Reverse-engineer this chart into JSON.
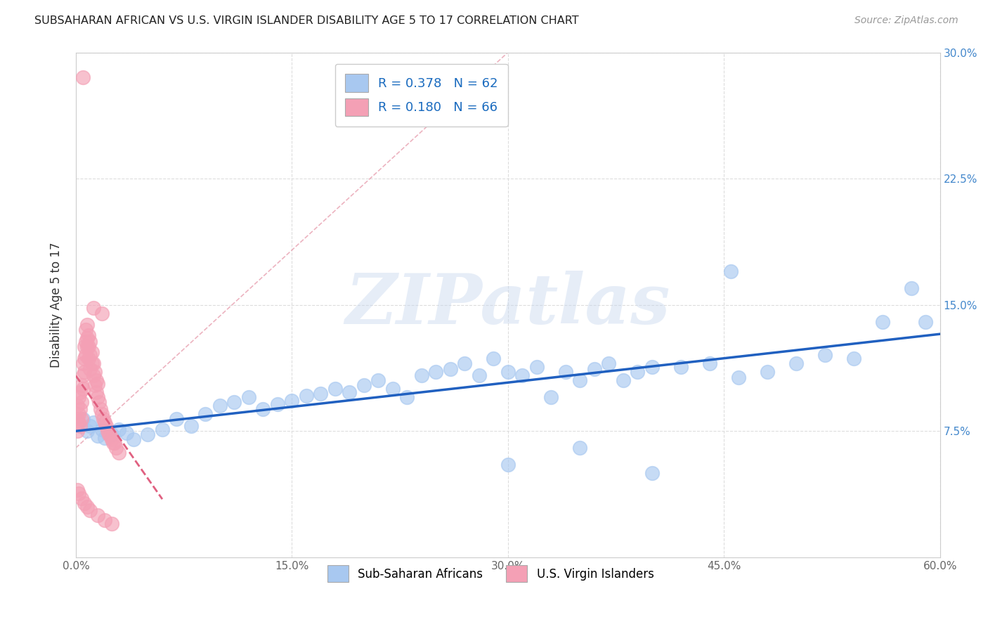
{
  "title": "SUBSAHARAN AFRICAN VS U.S. VIRGIN ISLANDER DISABILITY AGE 5 TO 17 CORRELATION CHART",
  "source": "Source: ZipAtlas.com",
  "ylabel": "Disability Age 5 to 17",
  "xlim": [
    0.0,
    0.6
  ],
  "ylim": [
    0.0,
    0.3
  ],
  "xticks": [
    0.0,
    0.15,
    0.3,
    0.45,
    0.6
  ],
  "xtick_labels": [
    "0.0%",
    "15.0%",
    "30.0%",
    "45.0%",
    "60.0%"
  ],
  "ytick_labels_right": [
    "7.5%",
    "15.0%",
    "22.5%",
    "30.0%"
  ],
  "yticks_right": [
    0.075,
    0.15,
    0.225,
    0.3
  ],
  "r_blue": 0.378,
  "n_blue": 62,
  "r_pink": 0.18,
  "n_pink": 66,
  "legend_label_blue": "Sub-Saharan Africans",
  "legend_label_pink": "U.S. Virgin Islanders",
  "blue_color": "#a8c8f0",
  "pink_color": "#f4a0b5",
  "blue_line_color": "#2060c0",
  "pink_line_color": "#e06080",
  "watermark": "ZIPatlas",
  "blue_scatter_x": [
    0.005,
    0.008,
    0.01,
    0.012,
    0.015,
    0.018,
    0.02,
    0.022,
    0.025,
    0.03,
    0.035,
    0.04,
    0.05,
    0.06,
    0.07,
    0.08,
    0.09,
    0.1,
    0.11,
    0.12,
    0.13,
    0.14,
    0.15,
    0.16,
    0.17,
    0.18,
    0.19,
    0.2,
    0.21,
    0.22,
    0.23,
    0.24,
    0.25,
    0.26,
    0.27,
    0.28,
    0.29,
    0.3,
    0.31,
    0.32,
    0.33,
    0.34,
    0.35,
    0.36,
    0.37,
    0.38,
    0.39,
    0.4,
    0.42,
    0.44,
    0.46,
    0.48,
    0.5,
    0.52,
    0.54,
    0.56,
    0.58,
    0.59,
    0.3,
    0.35,
    0.4,
    0.455
  ],
  "blue_scatter_y": [
    0.082,
    0.075,
    0.078,
    0.08,
    0.072,
    0.076,
    0.071,
    0.074,
    0.073,
    0.076,
    0.074,
    0.07,
    0.073,
    0.076,
    0.082,
    0.078,
    0.085,
    0.09,
    0.092,
    0.095,
    0.088,
    0.091,
    0.093,
    0.096,
    0.097,
    0.1,
    0.098,
    0.102,
    0.105,
    0.1,
    0.095,
    0.108,
    0.11,
    0.112,
    0.115,
    0.108,
    0.118,
    0.11,
    0.108,
    0.113,
    0.095,
    0.11,
    0.105,
    0.112,
    0.115,
    0.105,
    0.11,
    0.113,
    0.113,
    0.115,
    0.107,
    0.11,
    0.115,
    0.12,
    0.118,
    0.14,
    0.16,
    0.14,
    0.055,
    0.065,
    0.05,
    0.17
  ],
  "pink_scatter_x": [
    0.001,
    0.001,
    0.001,
    0.002,
    0.002,
    0.002,
    0.003,
    0.003,
    0.003,
    0.004,
    0.004,
    0.004,
    0.005,
    0.005,
    0.005,
    0.006,
    0.006,
    0.006,
    0.007,
    0.007,
    0.007,
    0.008,
    0.008,
    0.008,
    0.009,
    0.009,
    0.009,
    0.01,
    0.01,
    0.01,
    0.011,
    0.011,
    0.012,
    0.012,
    0.013,
    0.013,
    0.014,
    0.014,
    0.015,
    0.015,
    0.016,
    0.017,
    0.018,
    0.019,
    0.02,
    0.021,
    0.022,
    0.023,
    0.024,
    0.025,
    0.026,
    0.027,
    0.028,
    0.03,
    0.001,
    0.002,
    0.004,
    0.006,
    0.008,
    0.01,
    0.015,
    0.02,
    0.025,
    0.005,
    0.012,
    0.018
  ],
  "pink_scatter_y": [
    0.075,
    0.082,
    0.09,
    0.08,
    0.085,
    0.095,
    0.078,
    0.088,
    0.098,
    0.082,
    0.092,
    0.102,
    0.1,
    0.108,
    0.115,
    0.11,
    0.118,
    0.125,
    0.12,
    0.128,
    0.135,
    0.125,
    0.13,
    0.138,
    0.118,
    0.125,
    0.132,
    0.112,
    0.12,
    0.128,
    0.115,
    0.122,
    0.108,
    0.115,
    0.102,
    0.11,
    0.098,
    0.105,
    0.095,
    0.103,
    0.092,
    0.088,
    0.085,
    0.082,
    0.08,
    0.078,
    0.075,
    0.073,
    0.072,
    0.07,
    0.068,
    0.068,
    0.065,
    0.062,
    0.04,
    0.038,
    0.035,
    0.032,
    0.03,
    0.028,
    0.025,
    0.022,
    0.02,
    0.285,
    0.148,
    0.145
  ]
}
